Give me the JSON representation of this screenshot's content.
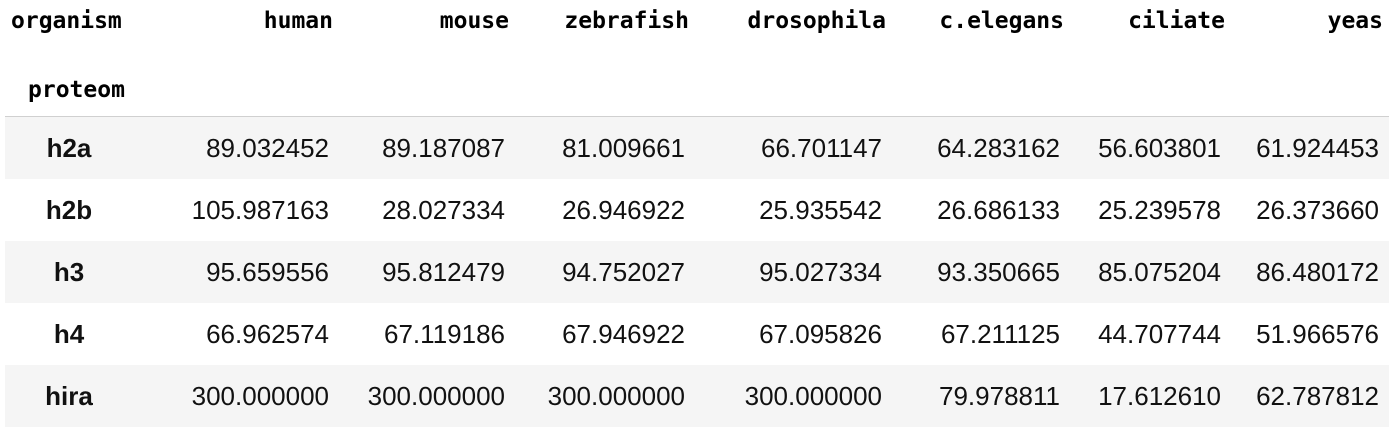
{
  "table": {
    "column_header_label": "organism",
    "index_name": "proteom",
    "columns": [
      "human",
      "mouse",
      "zebrafish",
      "drosophila",
      "c.elegans",
      "ciliate",
      "yeas"
    ],
    "rows": [
      {
        "label": "h2a",
        "values": [
          "89.032452",
          "89.187087",
          "81.009661",
          "66.701147",
          "64.283162",
          "56.603801",
          "61.924453"
        ]
      },
      {
        "label": "h2b",
        "values": [
          "105.987163",
          "28.027334",
          "26.946922",
          "25.935542",
          "26.686133",
          "25.239578",
          "26.373660"
        ]
      },
      {
        "label": "h3",
        "values": [
          "95.659556",
          "95.812479",
          "94.752027",
          "95.027334",
          "93.350665",
          "85.075204",
          "86.480172"
        ]
      },
      {
        "label": "h4",
        "values": [
          "66.962574",
          "67.119186",
          "67.946922",
          "67.095826",
          "67.211125",
          "44.707744",
          "51.966576"
        ]
      },
      {
        "label": "hira",
        "values": [
          "300.000000",
          "300.000000",
          "300.000000",
          "300.000000",
          "79.978811",
          "17.612610",
          "62.787812"
        ]
      }
    ]
  }
}
